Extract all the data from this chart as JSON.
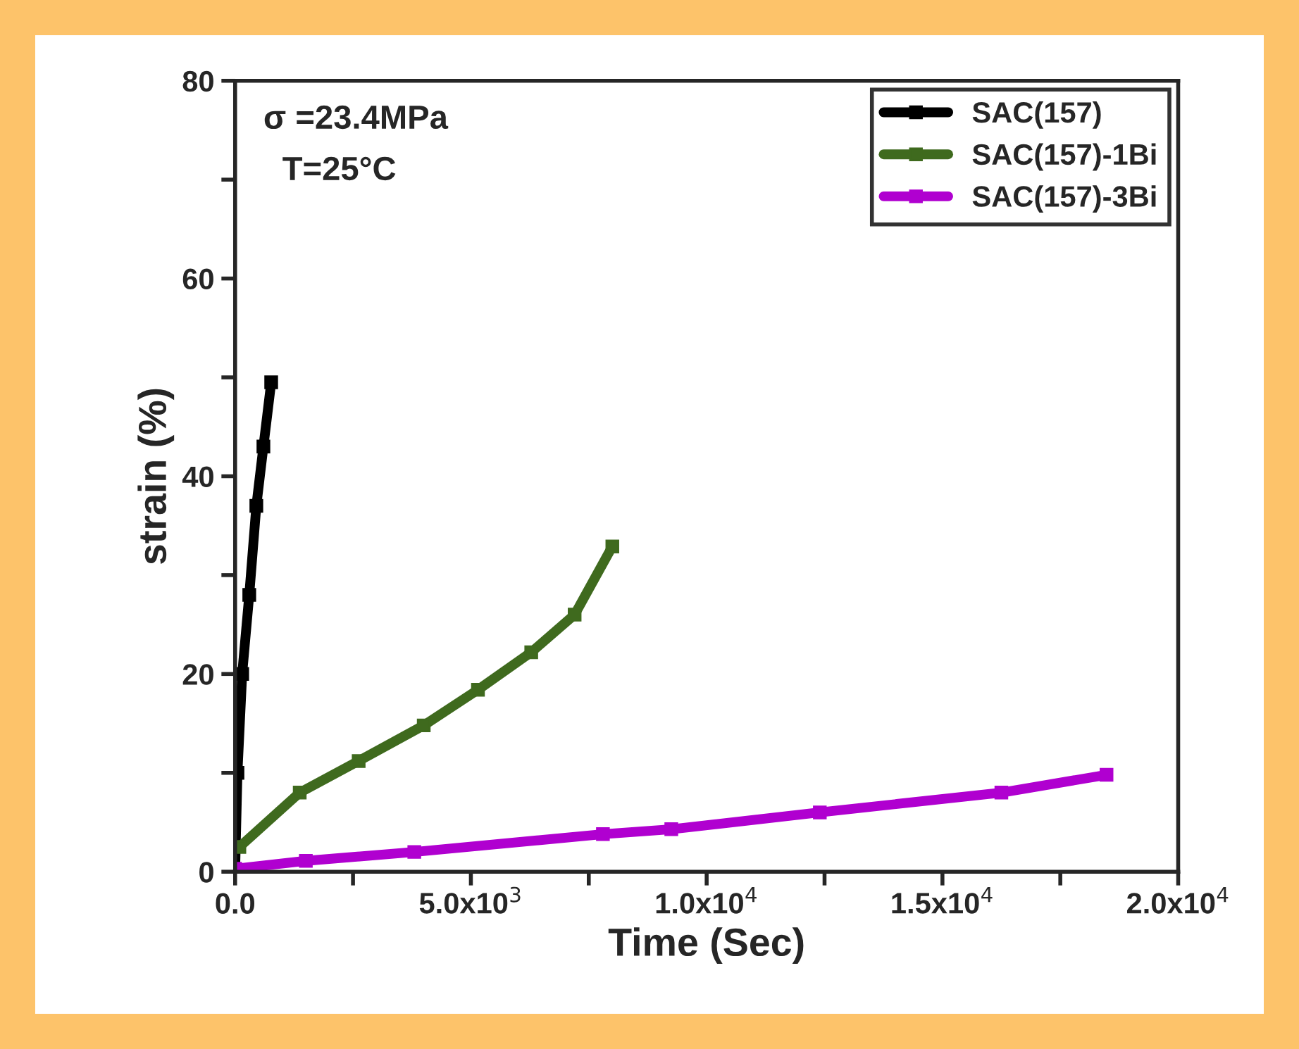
{
  "chart_data": {
    "type": "line",
    "xlabel": "Time (Sec)",
    "ylabel": "strain (%)",
    "annotations": [
      "σ =23.4MPa",
      "T=25°C"
    ],
    "series": [
      {
        "name": "SAC(157)",
        "color": "#000000",
        "x": [
          0,
          50,
          150,
          300,
          450,
          600,
          765
        ],
        "values": [
          0,
          10,
          20,
          28,
          37,
          43,
          49.5
        ]
      },
      {
        "name": "SAC(157)-1Bi",
        "color": "#3f6a1e",
        "x": [
          90,
          1370,
          2620,
          4000,
          5150,
          6280,
          7200,
          8000
        ],
        "values": [
          2.5,
          8,
          11.2,
          14.8,
          18.4,
          22.2,
          26,
          32.9
        ]
      },
      {
        "name": "SAC(157)-3Bi",
        "color": "#b000d0",
        "x": [
          0,
          1500,
          3800,
          7800,
          9250,
          12400,
          16250,
          18480
        ],
        "values": [
          0.3,
          1.1,
          2.0,
          3.8,
          4.3,
          6.0,
          8.0,
          9.8
        ]
      }
    ],
    "xlim": [
      0,
      20000
    ],
    "ylim": [
      0,
      80
    ],
    "xticks": [
      {
        "value": 0,
        "label": "0.0"
      },
      {
        "value": 2500,
        "label": null
      },
      {
        "value": 5000,
        "label": "5.0x10$^{3}$"
      },
      {
        "value": 7500,
        "label": null
      },
      {
        "value": 10000,
        "label": "1.0x10$^{4}$"
      },
      {
        "value": 12500,
        "label": null
      },
      {
        "value": 15000,
        "label": "1.5x10$^{4}$"
      },
      {
        "value": 17500,
        "label": null
      },
      {
        "value": 20000,
        "label": "2.0x10$^{4}$"
      }
    ],
    "yticks": [
      0,
      {
        "value": 10,
        "label": null
      },
      20,
      {
        "value": 30,
        "label": null
      },
      40,
      {
        "value": 50,
        "label": null
      },
      60,
      {
        "value": 70,
        "label": null
      },
      80
    ],
    "grid": false,
    "legend": "top right",
    "marker": "square",
    "line_style": "solid"
  }
}
